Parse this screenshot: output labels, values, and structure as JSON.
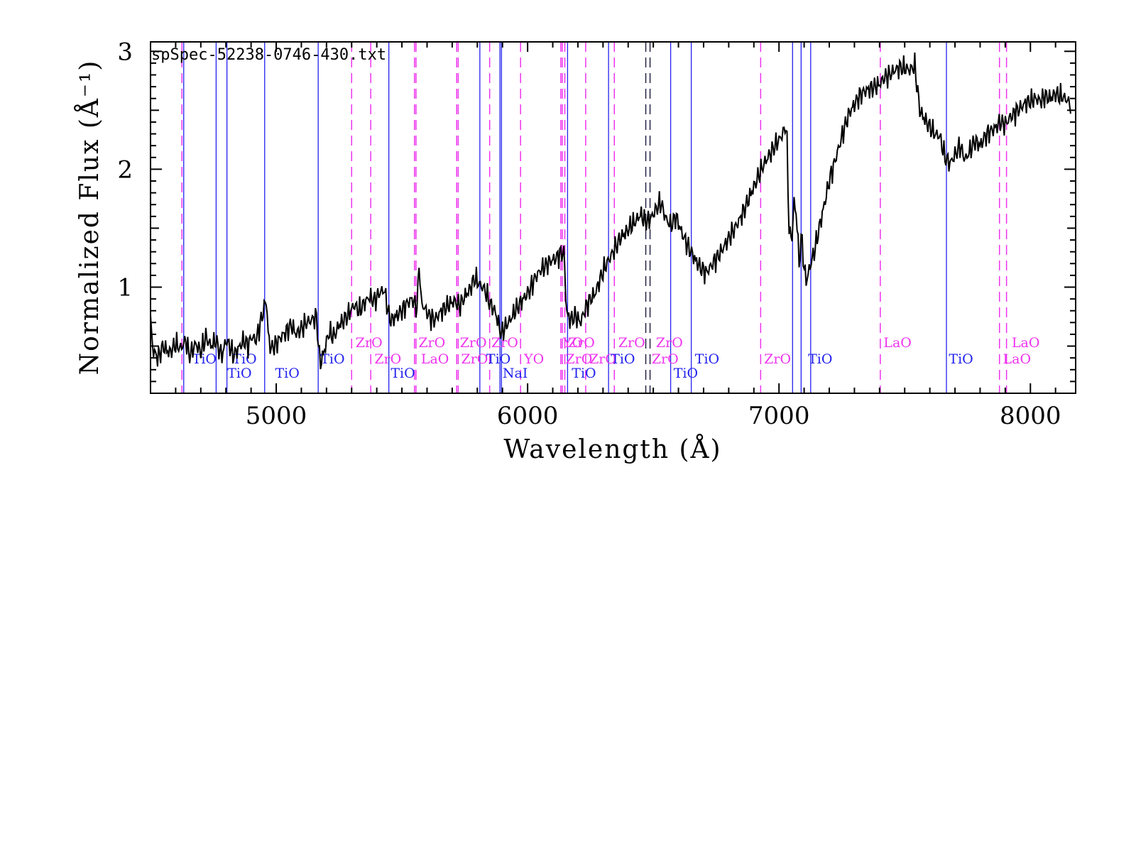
{
  "chart_data": {
    "type": "line",
    "title": "spSpec-52238-0746-430.txt",
    "xlabel": "Wavelength (Å)",
    "ylabel": "Normalized Flux  (Å⁻¹)",
    "xlim": [
      4500,
      8180
    ],
    "ylim": [
      0.1,
      3.08
    ],
    "xticks": [
      5000,
      6000,
      7000,
      8000
    ],
    "yticks": [
      1,
      2,
      3
    ],
    "grid": false,
    "legend": "none",
    "colors": {
      "spectrum": "#000000",
      "tio": "#2222ee",
      "metal": "#ee33ee",
      "other": "#222244"
    },
    "series": [
      {
        "anchors": [
          [
            4500,
            0.72
          ],
          [
            4510,
            0.46
          ],
          [
            4530,
            0.4
          ],
          [
            4550,
            0.5
          ],
          [
            4575,
            0.44
          ],
          [
            4600,
            0.52
          ],
          [
            4620,
            0.48
          ],
          [
            4640,
            0.55
          ],
          [
            4655,
            0.42
          ],
          [
            4680,
            0.52
          ],
          [
            4700,
            0.45
          ],
          [
            4720,
            0.58
          ],
          [
            4740,
            0.5
          ],
          [
            4760,
            0.55
          ],
          [
            4770,
            0.48
          ],
          [
            4785,
            0.42
          ],
          [
            4800,
            0.55
          ],
          [
            4815,
            0.5
          ],
          [
            4830,
            0.42
          ],
          [
            4850,
            0.48
          ],
          [
            4870,
            0.55
          ],
          [
            4890,
            0.5
          ],
          [
            4900,
            0.58
          ],
          [
            4920,
            0.55
          ],
          [
            4940,
            0.72
          ],
          [
            4955,
            0.85
          ],
          [
            4960,
            0.9
          ],
          [
            4970,
            0.55
          ],
          [
            4980,
            0.48
          ],
          [
            5000,
            0.52
          ],
          [
            5020,
            0.58
          ],
          [
            5040,
            0.62
          ],
          [
            5060,
            0.68
          ],
          [
            5080,
            0.6
          ],
          [
            5100,
            0.65
          ],
          [
            5120,
            0.7
          ],
          [
            5140,
            0.72
          ],
          [
            5160,
            0.75
          ],
          [
            5170,
            0.45
          ],
          [
            5175,
            0.35
          ],
          [
            5190,
            0.45
          ],
          [
            5210,
            0.62
          ],
          [
            5230,
            0.58
          ],
          [
            5250,
            0.68
          ],
          [
            5270,
            0.72
          ],
          [
            5290,
            0.78
          ],
          [
            5310,
            0.85
          ],
          [
            5330,
            0.8
          ],
          [
            5350,
            0.86
          ],
          [
            5370,
            0.92
          ],
          [
            5390,
            0.88
          ],
          [
            5410,
            0.95
          ],
          [
            5430,
            0.98
          ],
          [
            5450,
            0.74
          ],
          [
            5460,
            0.72
          ],
          [
            5480,
            0.76
          ],
          [
            5500,
            0.8
          ],
          [
            5520,
            0.86
          ],
          [
            5540,
            0.9
          ],
          [
            5560,
            0.82
          ],
          [
            5570,
            1.26
          ],
          [
            5575,
            0.88
          ],
          [
            5590,
            0.82
          ],
          [
            5610,
            0.75
          ],
          [
            5630,
            0.72
          ],
          [
            5650,
            0.78
          ],
          [
            5670,
            0.82
          ],
          [
            5690,
            0.86
          ],
          [
            5710,
            0.88
          ],
          [
            5730,
            0.84
          ],
          [
            5750,
            0.92
          ],
          [
            5770,
            0.98
          ],
          [
            5790,
            1.08
          ],
          [
            5810,
            1.02
          ],
          [
            5830,
            0.98
          ],
          [
            5850,
            0.86
          ],
          [
            5870,
            0.8
          ],
          [
            5885,
            0.68
          ],
          [
            5895,
            0.6
          ],
          [
            5910,
            0.66
          ],
          [
            5930,
            0.72
          ],
          [
            5950,
            0.8
          ],
          [
            5970,
            0.86
          ],
          [
            5990,
            0.92
          ],
          [
            6010,
            0.98
          ],
          [
            6030,
            1.08
          ],
          [
            6050,
            1.14
          ],
          [
            6070,
            1.18
          ],
          [
            6090,
            1.22
          ],
          [
            6110,
            1.24
          ],
          [
            6130,
            1.28
          ],
          [
            6145,
            1.3
          ],
          [
            6155,
            0.78
          ],
          [
            6170,
            0.72
          ],
          [
            6190,
            0.76
          ],
          [
            6210,
            0.7
          ],
          [
            6230,
            0.82
          ],
          [
            6250,
            0.9
          ],
          [
            6270,
            0.95
          ],
          [
            6290,
            1.08
          ],
          [
            6310,
            1.18
          ],
          [
            6330,
            1.26
          ],
          [
            6350,
            1.34
          ],
          [
            6370,
            1.42
          ],
          [
            6390,
            1.46
          ],
          [
            6410,
            1.52
          ],
          [
            6430,
            1.56
          ],
          [
            6450,
            1.62
          ],
          [
            6470,
            1.55
          ],
          [
            6490,
            1.58
          ],
          [
            6510,
            1.66
          ],
          [
            6530,
            1.72
          ],
          [
            6550,
            1.58
          ],
          [
            6570,
            1.52
          ],
          [
            6590,
            1.6
          ],
          [
            6610,
            1.48
          ],
          [
            6630,
            1.38
          ],
          [
            6650,
            1.3
          ],
          [
            6670,
            1.22
          ],
          [
            6690,
            1.16
          ],
          [
            6710,
            1.12
          ],
          [
            6730,
            1.18
          ],
          [
            6750,
            1.24
          ],
          [
            6770,
            1.3
          ],
          [
            6790,
            1.38
          ],
          [
            6810,
            1.45
          ],
          [
            6830,
            1.52
          ],
          [
            6850,
            1.6
          ],
          [
            6870,
            1.7
          ],
          [
            6890,
            1.8
          ],
          [
            6910,
            1.9
          ],
          [
            6930,
            2.0
          ],
          [
            6950,
            2.08
          ],
          [
            6970,
            2.15
          ],
          [
            6990,
            2.22
          ],
          [
            7010,
            2.28
          ],
          [
            7030,
            2.38
          ],
          [
            7040,
            1.5
          ],
          [
            7050,
            1.38
          ],
          [
            7060,
            1.72
          ],
          [
            7070,
            1.6
          ],
          [
            7080,
            1.2
          ],
          [
            7090,
            1.45
          ],
          [
            7100,
            1.15
          ],
          [
            7110,
            1.05
          ],
          [
            7120,
            1.15
          ],
          [
            7140,
            1.3
          ],
          [
            7160,
            1.5
          ],
          [
            7180,
            1.7
          ],
          [
            7200,
            1.9
          ],
          [
            7220,
            2.05
          ],
          [
            7240,
            2.2
          ],
          [
            7260,
            2.35
          ],
          [
            7280,
            2.48
          ],
          [
            7300,
            2.55
          ],
          [
            7320,
            2.62
          ],
          [
            7340,
            2.66
          ],
          [
            7360,
            2.68
          ],
          [
            7380,
            2.7
          ],
          [
            7400,
            2.72
          ],
          [
            7420,
            2.78
          ],
          [
            7440,
            2.8
          ],
          [
            7460,
            2.84
          ],
          [
            7480,
            2.86
          ],
          [
            7500,
            2.86
          ],
          [
            7520,
            2.84
          ],
          [
            7540,
            2.88
          ],
          [
            7560,
            2.5
          ],
          [
            7580,
            2.42
          ],
          [
            7600,
            2.36
          ],
          [
            7620,
            2.3
          ],
          [
            7640,
            2.28
          ],
          [
            7660,
            2.1
          ],
          [
            7680,
            2.05
          ],
          [
            7700,
            2.12
          ],
          [
            7720,
            2.2
          ],
          [
            7740,
            2.08
          ],
          [
            7760,
            2.16
          ],
          [
            7780,
            2.24
          ],
          [
            7800,
            2.2
          ],
          [
            7820,
            2.28
          ],
          [
            7840,
            2.32
          ],
          [
            7860,
            2.35
          ],
          [
            7880,
            2.4
          ],
          [
            7900,
            2.38
          ],
          [
            7920,
            2.44
          ],
          [
            7940,
            2.48
          ],
          [
            7960,
            2.52
          ],
          [
            7980,
            2.56
          ],
          [
            8000,
            2.58
          ],
          [
            8020,
            2.6
          ],
          [
            8040,
            2.58
          ],
          [
            8060,
            2.62
          ],
          [
            8080,
            2.6
          ],
          [
            8100,
            2.64
          ],
          [
            8120,
            2.62
          ],
          [
            8140,
            2.6
          ],
          [
            8160,
            2.55
          ]
        ]
      }
    ],
    "lines": [
      {
        "x": 4625,
        "type": "metal"
      },
      {
        "x": 4632,
        "type": "tio"
      },
      {
        "x": 4761,
        "type": "tio"
      },
      {
        "x": 4804,
        "type": "tio"
      },
      {
        "x": 4954,
        "type": "tio"
      },
      {
        "x": 5167,
        "type": "tio"
      },
      {
        "x": 5300,
        "type": "metal"
      },
      {
        "x": 5376,
        "type": "metal"
      },
      {
        "x": 5448,
        "type": "tio"
      },
      {
        "x": 5550,
        "type": "metal"
      },
      {
        "x": 5556,
        "type": "metal"
      },
      {
        "x": 5718,
        "type": "metal"
      },
      {
        "x": 5724,
        "type": "metal"
      },
      {
        "x": 5810,
        "type": "tio"
      },
      {
        "x": 5849,
        "type": "metal"
      },
      {
        "x": 5890,
        "type": "tio"
      },
      {
        "x": 5896,
        "type": "tio"
      },
      {
        "x": 5972,
        "type": "metal"
      },
      {
        "x": 6132,
        "type": "metal"
      },
      {
        "x": 6138,
        "type": "metal"
      },
      {
        "x": 6148,
        "type": "metal"
      },
      {
        "x": 6159,
        "type": "tio"
      },
      {
        "x": 6231,
        "type": "metal"
      },
      {
        "x": 6322,
        "type": "tio"
      },
      {
        "x": 6345,
        "type": "metal"
      },
      {
        "x": 6470,
        "type": "other"
      },
      {
        "x": 6487,
        "type": "other"
      },
      {
        "x": 6569,
        "type": "tio"
      },
      {
        "x": 6651,
        "type": "tio"
      },
      {
        "x": 6927,
        "type": "metal"
      },
      {
        "x": 7054,
        "type": "tio"
      },
      {
        "x": 7088,
        "type": "tio"
      },
      {
        "x": 7126,
        "type": "tio"
      },
      {
        "x": 7403,
        "type": "metal"
      },
      {
        "x": 7666,
        "type": "tio"
      },
      {
        "x": 7877,
        "type": "metal"
      },
      {
        "x": 7905,
        "type": "metal"
      }
    ],
    "annotations": [
      {
        "text": "TiO",
        "x": 4660,
        "level": 2,
        "type": "tio"
      },
      {
        "text": "TiO",
        "x": 4800,
        "level": 3,
        "type": "tio"
      },
      {
        "text": "TiO",
        "x": 4820,
        "level": 2,
        "type": "tio"
      },
      {
        "text": "TiO",
        "x": 4990,
        "level": 3,
        "type": "tio"
      },
      {
        "text": "TiO",
        "x": 5170,
        "level": 2,
        "type": "tio"
      },
      {
        "text": "ZrO",
        "x": 5310,
        "level": 1,
        "type": "metal"
      },
      {
        "text": "ZrO",
        "x": 5385,
        "level": 2,
        "type": "metal"
      },
      {
        "text": "TiO",
        "x": 5450,
        "level": 3,
        "type": "tio"
      },
      {
        "text": "ZrO",
        "x": 5560,
        "level": 1,
        "type": "metal"
      },
      {
        "text": "LaO",
        "x": 5570,
        "level": 2,
        "type": "metal"
      },
      {
        "text": "ZrO",
        "x": 5725,
        "level": 1,
        "type": "metal"
      },
      {
        "text": "ZrO",
        "x": 5730,
        "level": 2,
        "type": "metal"
      },
      {
        "text": "ZrO",
        "x": 5850,
        "level": 1,
        "type": "metal"
      },
      {
        "text": "TiO",
        "x": 5830,
        "level": 2,
        "type": "tio"
      },
      {
        "text": "NaI",
        "x": 5895,
        "level": 3,
        "type": "tio"
      },
      {
        "text": "YO",
        "x": 5980,
        "level": 2,
        "type": "metal"
      },
      {
        "text": "YO",
        "x": 6135,
        "level": 1,
        "type": "metal"
      },
      {
        "text": "ZrO",
        "x": 6155,
        "level": 1,
        "type": "metal"
      },
      {
        "text": "ZrO",
        "x": 6145,
        "level": 2,
        "type": "metal"
      },
      {
        "text": "ZrO",
        "x": 6240,
        "level": 2,
        "type": "metal"
      },
      {
        "text": "TiO",
        "x": 6170,
        "level": 3,
        "type": "tio"
      },
      {
        "text": "ZrO",
        "x": 6355,
        "level": 1,
        "type": "metal"
      },
      {
        "text": "TiO",
        "x": 6325,
        "level": 2,
        "type": "tio"
      },
      {
        "text": "ZrO",
        "x": 6505,
        "level": 1,
        "type": "metal"
      },
      {
        "text": "ZrO",
        "x": 6488,
        "level": 2,
        "type": "metal"
      },
      {
        "text": "TiO",
        "x": 6575,
        "level": 3,
        "type": "tio"
      },
      {
        "text": "TiO",
        "x": 6660,
        "level": 2,
        "type": "tio"
      },
      {
        "text": "ZrO",
        "x": 6935,
        "level": 2,
        "type": "metal"
      },
      {
        "text": "TiO",
        "x": 7110,
        "level": 2,
        "type": "tio"
      },
      {
        "text": "LaO",
        "x": 7410,
        "level": 1,
        "type": "metal"
      },
      {
        "text": "TiO",
        "x": 7670,
        "level": 2,
        "type": "tio"
      },
      {
        "text": "LaO",
        "x": 7920,
        "level": 1,
        "type": "metal"
      },
      {
        "text": "LaO",
        "x": 7885,
        "level": 2,
        "type": "metal"
      }
    ]
  }
}
